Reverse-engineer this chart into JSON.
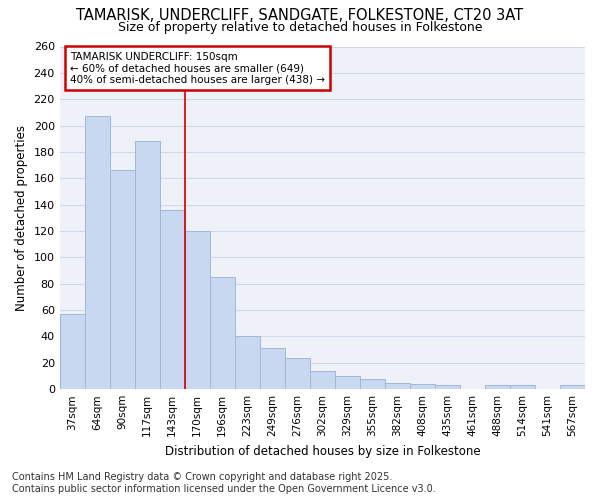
{
  "title_line1": "TAMARISK, UNDERCLIFF, SANDGATE, FOLKESTONE, CT20 3AT",
  "title_line2": "Size of property relative to detached houses in Folkestone",
  "xlabel": "Distribution of detached houses by size in Folkestone",
  "ylabel": "Number of detached properties",
  "categories": [
    "37sqm",
    "64sqm",
    "90sqm",
    "117sqm",
    "143sqm",
    "170sqm",
    "196sqm",
    "223sqm",
    "249sqm",
    "276sqm",
    "302sqm",
    "329sqm",
    "355sqm",
    "382sqm",
    "408sqm",
    "435sqm",
    "461sqm",
    "488sqm",
    "514sqm",
    "541sqm",
    "567sqm"
  ],
  "values": [
    57,
    207,
    166,
    188,
    136,
    120,
    85,
    40,
    31,
    24,
    14,
    10,
    8,
    5,
    4,
    3,
    0,
    3,
    3,
    0,
    3
  ],
  "bar_color": "#c8d8f0",
  "bar_edge_color": "#a0b8d8",
  "annotation_line1": "TAMARISK UNDERCLIFF: 150sqm",
  "annotation_line2": "← 60% of detached houses are smaller (649)",
  "annotation_line3": "40% of semi-detached houses are larger (438) →",
  "annotation_box_color": "#ffffff",
  "annotation_box_edge_color": "#cc0000",
  "vline_x": 4.5,
  "vline_color": "#cc0000",
  "ylim_max": 260,
  "ytick_step": 20,
  "footer_line1": "Contains HM Land Registry data © Crown copyright and database right 2025.",
  "footer_line2": "Contains public sector information licensed under the Open Government Licence v3.0.",
  "bg_color": "#ffffff",
  "grid_color": "#d0d8e8",
  "plot_bg_color": "#eef2f8"
}
